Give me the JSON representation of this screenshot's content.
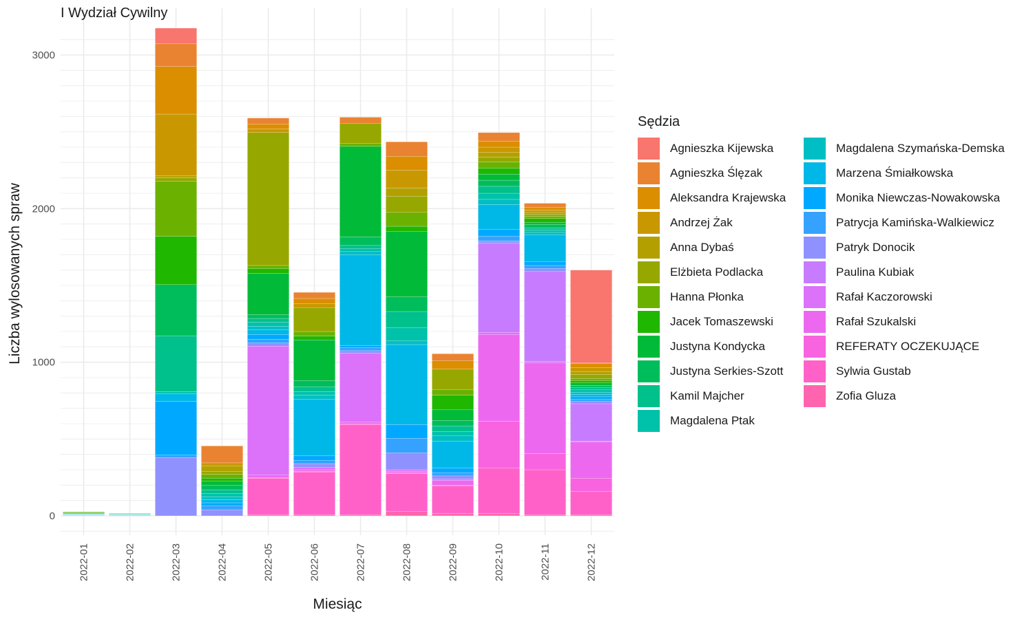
{
  "chart_data": {
    "type": "bar",
    "stacked": true,
    "title": "I Wydział Cywilny",
    "xlabel": "Miesiąc",
    "ylabel": "Liczba wylosowanych spraw",
    "legend_title": "Sędzia",
    "legend_position": "right",
    "grid": true,
    "ylim": [
      -120,
      3160
    ],
    "yticks": [
      0,
      1000,
      2000,
      3000
    ],
    "categories": [
      "2022-01",
      "2022-02",
      "2022-03",
      "2022-04",
      "2022-05",
      "2022-06",
      "2022-07",
      "2022-08",
      "2022-09",
      "2022-10",
      "2022-11",
      "2022-12"
    ],
    "series": [
      {
        "name": "Agnieszka Kijewska",
        "color": "#F8766D",
        "values": [
          0,
          0,
          100,
          0,
          0,
          0,
          0,
          0,
          0,
          0,
          0,
          605
        ]
      },
      {
        "name": "Agnieszka Ślęzak",
        "color": "#EA8331",
        "values": [
          0,
          0,
          150,
          110,
          40,
          40,
          40,
          95,
          45,
          55,
          25,
          5
        ]
      },
      {
        "name": "Aleksandra Krajewska",
        "color": "#DB8E00",
        "values": [
          0,
          0,
          310,
          0,
          30,
          35,
          0,
          90,
          55,
          40,
          20,
          25
        ]
      },
      {
        "name": "Andrzej Żak",
        "color": "#C99800",
        "values": [
          0,
          0,
          400,
          20,
          25,
          25,
          0,
          115,
          0,
          35,
          15,
          25
        ]
      },
      {
        "name": "Anna Dybaś",
        "color": "#B3A000",
        "values": [
          0,
          0,
          15,
          35,
          0,
          0,
          0,
          55,
          0,
          30,
          10,
          20
        ]
      },
      {
        "name": "Elżbieta Podlacka",
        "color": "#96A800",
        "values": [
          0,
          0,
          20,
          20,
          865,
          155,
          130,
          105,
          135,
          30,
          15,
          25
        ]
      },
      {
        "name": "Hanna Płonka",
        "color": "#6BB100",
        "values": [
          5,
          3,
          360,
          25,
          20,
          30,
          20,
          90,
          35,
          40,
          15,
          15
        ]
      },
      {
        "name": "Jacek Tomaszewski",
        "color": "#1FB700",
        "values": [
          0,
          0,
          315,
          20,
          30,
          25,
          0,
          35,
          95,
          40,
          25,
          15
        ]
      },
      {
        "name": "Justyna Kondycka",
        "color": "#00BA38",
        "values": [
          0,
          0,
          0,
          25,
          270,
          265,
          590,
          425,
          70,
          40,
          15,
          15
        ]
      },
      {
        "name": "Justyna Serkies-Szott",
        "color": "#00BD5C",
        "values": [
          4,
          2,
          335,
          30,
          25,
          40,
          55,
          95,
          35,
          40,
          20,
          15
        ]
      },
      {
        "name": "Kamil Majcher",
        "color": "#00C08B",
        "values": [
          3,
          2,
          360,
          25,
          25,
          30,
          20,
          105,
          35,
          45,
          15,
          15
        ]
      },
      {
        "name": "Magdalena Ptak",
        "color": "#00C1AA",
        "values": [
          3,
          2,
          15,
          20,
          25,
          25,
          20,
          85,
          30,
          40,
          15,
          15
        ]
      },
      {
        "name": "Magdalena Szymańska-Demska",
        "color": "#00BFC4",
        "values": [
          2,
          2,
          0,
          20,
          25,
          25,
          20,
          25,
          35,
          35,
          15,
          15
        ]
      },
      {
        "name": "Marzena Śmiałkowska",
        "color": "#00B8E7",
        "values": [
          2,
          2,
          50,
          20,
          30,
          370,
          590,
          520,
          175,
          160,
          175,
          15
        ]
      },
      {
        "name": "Monika Niewczas-Nowakowska",
        "color": "#00A9FF",
        "values": [
          2,
          2,
          350,
          20,
          30,
          30,
          15,
          90,
          30,
          45,
          25,
          15
        ]
      },
      {
        "name": "Patrycja Kamińska-Walkiewicz",
        "color": "#35A2FF",
        "values": [
          2,
          1,
          15,
          25,
          25,
          20,
          20,
          95,
          20,
          30,
          20,
          15
        ]
      },
      {
        "name": "Patryk Donocik",
        "color": "#8F91FF",
        "values": [
          2,
          1,
          380,
          40,
          20,
          25,
          15,
          110,
          20,
          15,
          20,
          15
        ]
      },
      {
        "name": "Paulina Kubiak",
        "color": "#C77CFF",
        "values": [
          0,
          0,
          0,
          0,
          0,
          0,
          0,
          0,
          0,
          580,
          585,
          245
        ]
      },
      {
        "name": "Rafał Kaczorowski",
        "color": "#DC71FA",
        "values": [
          0,
          0,
          0,
          0,
          840,
          15,
          450,
          10,
          10,
          15,
          10,
          5
        ]
      },
      {
        "name": "Rafał Szukalski",
        "color": "#EC69EF",
        "values": [
          0,
          0,
          0,
          0,
          15,
          10,
          10,
          10,
          30,
          565,
          590,
          235
        ]
      },
      {
        "name": "REFERATY OCZEKUJĄCE",
        "color": "#F863DF",
        "values": [
          0,
          0,
          0,
          0,
          5,
          5,
          5,
          5,
          5,
          305,
          105,
          85
        ]
      },
      {
        "name": "Sylwia Gustab",
        "color": "#FF61C9",
        "values": [
          0,
          0,
          0,
          0,
          240,
          280,
          590,
          245,
          180,
          295,
          295,
          155
        ]
      },
      {
        "name": "Zofia Gluza",
        "color": "#FF65AE",
        "values": [
          0,
          0,
          0,
          0,
          5,
          5,
          5,
          30,
          15,
          15,
          5,
          5
        ]
      }
    ]
  }
}
